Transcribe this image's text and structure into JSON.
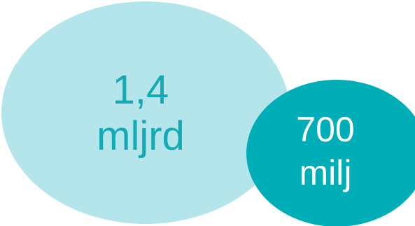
{
  "bubbles": {
    "large": {
      "line1": "1,4",
      "line2": "mljrd",
      "fill_color": "#b3e5ea",
      "text_color": "#13a9b5"
    },
    "small": {
      "line1": "700",
      "line2": "milj",
      "fill_color": "#00aeb8",
      "text_color": "#ffffff"
    }
  }
}
